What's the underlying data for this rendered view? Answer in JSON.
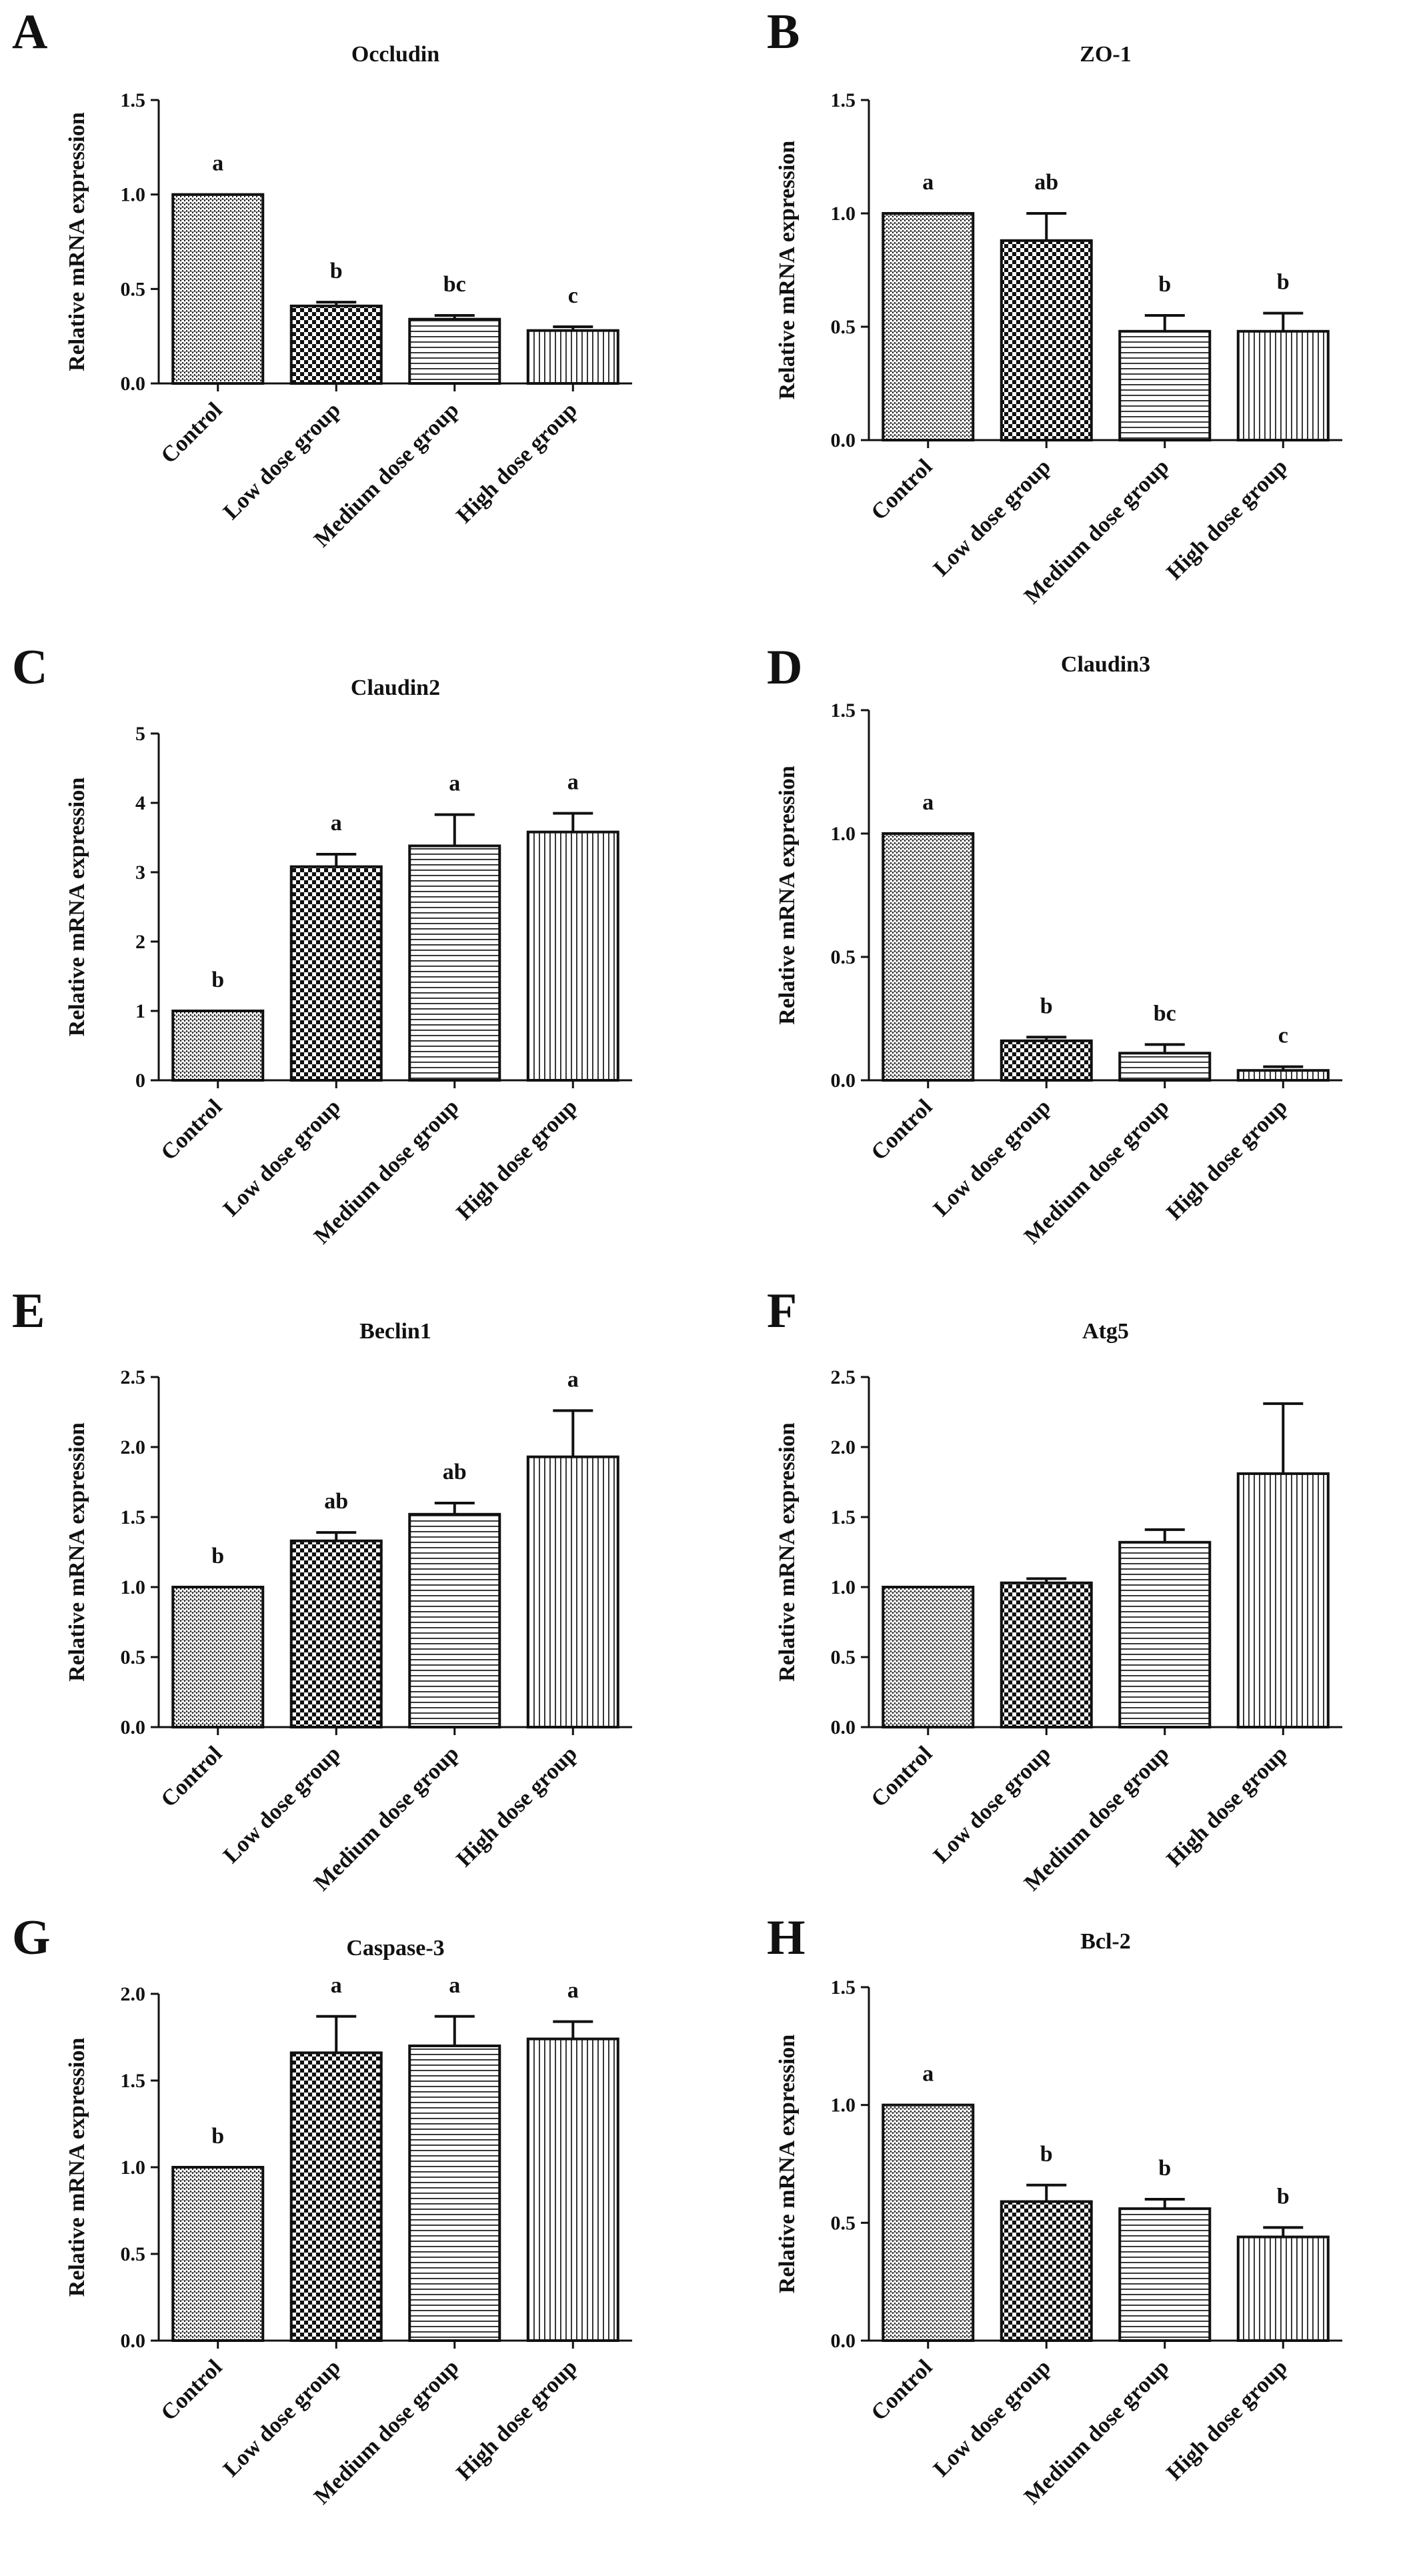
{
  "figure": {
    "colors": {
      "ink": "#111111",
      "background": "#ffffff"
    }
  },
  "chart_data": [
    {
      "panel": "A",
      "type": "bar",
      "title": "Occludin",
      "xlabel": "",
      "ylabel": "Relative mRNA expression",
      "categories": [
        "Control",
        "Low dose group",
        "Medium  dose group",
        "High dose group"
      ],
      "values": [
        1.0,
        0.41,
        0.34,
        0.28
      ],
      "errors": [
        0.0,
        0.02,
        0.02,
        0.02
      ],
      "significance": [
        "a",
        "b",
        "bc",
        "c"
      ],
      "patterns": [
        "fine",
        "checker",
        "horizontal",
        "vertical"
      ],
      "ylim": [
        0,
        1.5
      ],
      "yticks": [
        "0.0",
        "0.5",
        "1.0",
        "1.5"
      ]
    },
    {
      "panel": "B",
      "type": "bar",
      "title": "ZO-1",
      "xlabel": "",
      "ylabel": "Relative mRNA expression",
      "categories": [
        "Control",
        "Low dose group",
        "Medium  dose group",
        "High dose group"
      ],
      "values": [
        1.0,
        0.88,
        0.48,
        0.48
      ],
      "errors": [
        0.0,
        0.12,
        0.07,
        0.08
      ],
      "significance": [
        "a",
        "ab",
        "b",
        "b"
      ],
      "patterns": [
        "fine",
        "checker",
        "horizontal",
        "vertical"
      ],
      "ylim": [
        0,
        1.5
      ],
      "yticks": [
        "0.0",
        "0.5",
        "1.0",
        "1.5"
      ]
    },
    {
      "panel": "C",
      "type": "bar",
      "title": "Claudin2",
      "xlabel": "",
      "ylabel": "Relative mRNA expression",
      "categories": [
        "Control",
        "Low dose group",
        "Medium  dose group",
        "High dose group"
      ],
      "values": [
        1.0,
        3.08,
        3.38,
        3.58
      ],
      "errors": [
        0.0,
        0.18,
        0.45,
        0.27
      ],
      "significance": [
        "b",
        "a",
        "a",
        "a"
      ],
      "patterns": [
        "fine",
        "checker",
        "horizontal",
        "vertical"
      ],
      "ylim": [
        0,
        5
      ],
      "yticks": [
        "0",
        "1",
        "2",
        "3",
        "4",
        "5"
      ]
    },
    {
      "panel": "D",
      "type": "bar",
      "title": "Claudin3",
      "xlabel": "",
      "ylabel": "Relative mRNA expression",
      "categories": [
        "Control",
        "Low dose group",
        "Medium  dose group",
        "High dose group"
      ],
      "values": [
        1.0,
        0.16,
        0.11,
        0.04
      ],
      "errors": [
        0.0,
        0.015,
        0.035,
        0.015
      ],
      "significance": [
        "a",
        "b",
        "bc",
        "c"
      ],
      "patterns": [
        "fine",
        "checker",
        "horizontal",
        "vertical"
      ],
      "ylim": [
        0,
        1.5
      ],
      "yticks": [
        "0.0",
        "0.5",
        "1.0",
        "1.5"
      ]
    },
    {
      "panel": "E",
      "type": "bar",
      "title": "Beclin1",
      "xlabel": "",
      "ylabel": "Relative mRNA expression",
      "categories": [
        "Control",
        "Low dose group",
        "Medium  dose group",
        "High dose group"
      ],
      "values": [
        1.0,
        1.33,
        1.52,
        1.93
      ],
      "errors": [
        0.0,
        0.06,
        0.08,
        0.33
      ],
      "significance": [
        "b",
        "ab",
        "ab",
        "a"
      ],
      "patterns": [
        "fine",
        "checker",
        "horizontal",
        "vertical"
      ],
      "ylim": [
        0,
        2.5
      ],
      "yticks": [
        "0.0",
        "0.5",
        "1.0",
        "1.5",
        "2.0",
        "2.5"
      ]
    },
    {
      "panel": "F",
      "type": "bar",
      "title": "Atg5",
      "xlabel": "",
      "ylabel": "Relative mRNA expression",
      "categories": [
        "Control",
        "Low dose group",
        "Medium  dose group",
        "High dose group"
      ],
      "values": [
        1.0,
        1.03,
        1.32,
        1.81
      ],
      "errors": [
        0.0,
        0.03,
        0.09,
        0.5
      ],
      "significance": [
        "",
        "",
        "",
        ""
      ],
      "patterns": [
        "fine",
        "checker",
        "horizontal",
        "vertical"
      ],
      "ylim": [
        0,
        2.5
      ],
      "yticks": [
        "0.0",
        "0.5",
        "1.0",
        "1.5",
        "2.0",
        "2.5"
      ]
    },
    {
      "panel": "G",
      "type": "bar",
      "title": "Caspase-3",
      "xlabel": "",
      "ylabel": "Relative mRNA expression",
      "categories": [
        "Control",
        "Low dose group",
        "Medium  dose group",
        "High dose group"
      ],
      "values": [
        1.0,
        1.66,
        1.7,
        1.74
      ],
      "errors": [
        0.0,
        0.21,
        0.17,
        0.1
      ],
      "significance": [
        "b",
        "a",
        "a",
        "a"
      ],
      "patterns": [
        "fine",
        "checker",
        "horizontal",
        "vertical"
      ],
      "ylim": [
        0,
        2.0
      ],
      "yticks": [
        "0.0",
        "0.5",
        "1.0",
        "1.5",
        "2.0"
      ]
    },
    {
      "panel": "H",
      "type": "bar",
      "title": "Bcl-2",
      "xlabel": "",
      "ylabel": "Relative mRNA expression",
      "categories": [
        "Control",
        "Low dose group",
        "Medium  dose group",
        "High dose group"
      ],
      "values": [
        1.0,
        0.59,
        0.56,
        0.44
      ],
      "errors": [
        0.0,
        0.07,
        0.04,
        0.04
      ],
      "significance": [
        "a",
        "b",
        "b",
        "b"
      ],
      "patterns": [
        "fine",
        "checker",
        "horizontal",
        "vertical"
      ],
      "ylim": [
        0,
        1.5
      ],
      "yticks": [
        "0.0",
        "0.5",
        "1.0",
        "1.5"
      ]
    }
  ]
}
